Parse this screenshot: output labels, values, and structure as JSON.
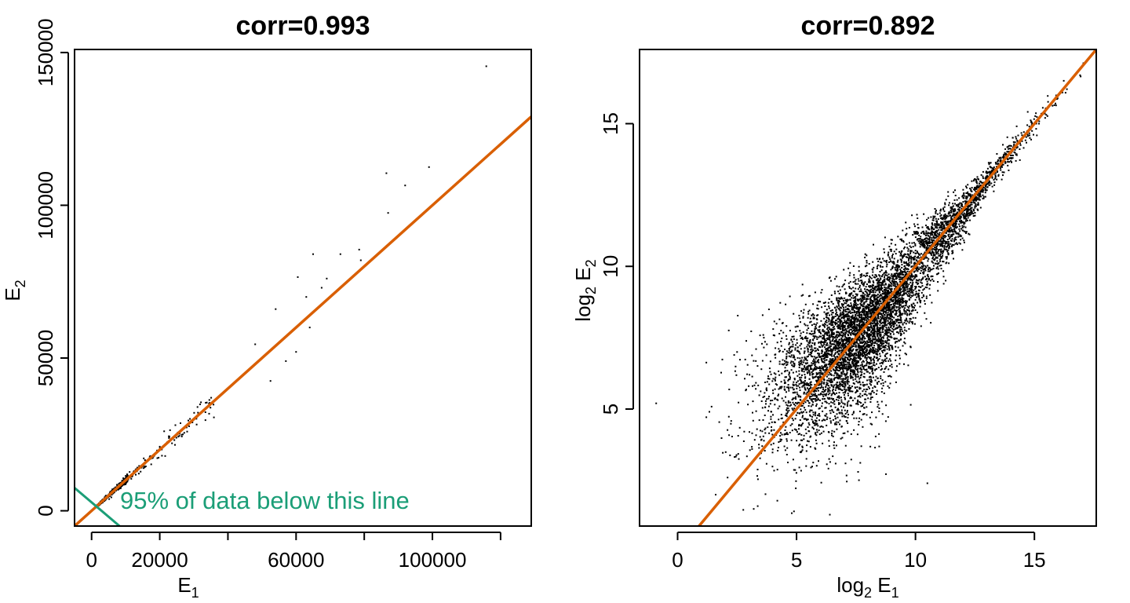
{
  "colors": {
    "fit_line": "#d95f02",
    "threshold_line": "#1b9e77",
    "points": "#000000"
  },
  "chart_data": [
    {
      "type": "scatter",
      "title": "corr=0.993",
      "xlabel": {
        "base": "E",
        "sub": "1"
      },
      "ylabel": {
        "base": "E",
        "sub": "2"
      },
      "xlim": [
        -5000,
        129000
      ],
      "ylim": [
        -5000,
        151000
      ],
      "x_ticks": [
        0,
        20000,
        40000,
        60000,
        80000,
        100000,
        120000
      ],
      "x_tick_labels": [
        "0",
        "20000",
        "",
        "60000",
        "",
        "100000",
        ""
      ],
      "y_ticks": [
        0,
        50000,
        100000,
        150000
      ],
      "y_tick_labels": [
        "0",
        "50000",
        "100000",
        "150000"
      ],
      "fit_line": {
        "intercept": 0,
        "slope": 1
      },
      "threshold_line": {
        "from": [
          -5000,
          7500
        ],
        "to": [
          8200,
          -5000
        ]
      },
      "annotation": "95% of data below this line",
      "highlighted_points": [
        {
          "x": 115800,
          "y": 145500
        },
        {
          "x": 99000,
          "y": 112500
        },
        {
          "x": 86500,
          "y": 110500
        },
        {
          "x": 92000,
          "y": 106500
        },
        {
          "x": 87000,
          "y": 97500
        },
        {
          "x": 65000,
          "y": 84000
        },
        {
          "x": 73000,
          "y": 84000
        },
        {
          "x": 78500,
          "y": 85500
        },
        {
          "x": 79000,
          "y": 82000
        },
        {
          "x": 60500,
          "y": 76500
        },
        {
          "x": 69000,
          "y": 76000
        },
        {
          "x": 67500,
          "y": 73000
        },
        {
          "x": 63000,
          "y": 70000
        },
        {
          "x": 54000,
          "y": 66000
        },
        {
          "x": 48000,
          "y": 54500
        },
        {
          "x": 60000,
          "y": 52000
        },
        {
          "x": 57000,
          "y": 49000
        },
        {
          "x": 52500,
          "y": 42500
        },
        {
          "x": 64000,
          "y": 60000
        }
      ]
    },
    {
      "type": "scatter",
      "title": "corr=0.892",
      "xlabel": {
        "base": "log",
        "logsub": "2",
        "base2": " E",
        "sub": "1"
      },
      "ylabel": {
        "base": "log",
        "logsub": "2",
        "base2": " E",
        "sub": "2"
      },
      "xlim": [
        -1.6,
        17.6
      ],
      "ylim": [
        0.9,
        17.6
      ],
      "x_ticks": [
        0,
        5,
        10,
        15
      ],
      "x_tick_labels": [
        "0",
        "5",
        "10",
        "15"
      ],
      "y_ticks": [
        5,
        10,
        15
      ],
      "y_tick_labels": [
        "5",
        "10",
        "15"
      ],
      "fit_line": {
        "intercept": 0,
        "slope": 1
      },
      "highlighted_points": [
        {
          "x": -0.9,
          "y": 5.2
        },
        {
          "x": 1.6,
          "y": 2.0
        },
        {
          "x": 2.1,
          "y": 2.6
        },
        {
          "x": 3.2,
          "y": 1.5
        },
        {
          "x": 6.4,
          "y": 1.3
        },
        {
          "x": 2.5,
          "y": 7.0
        },
        {
          "x": 3.3,
          "y": 7.1
        },
        {
          "x": 10.5,
          "y": 2.4
        }
      ]
    }
  ]
}
